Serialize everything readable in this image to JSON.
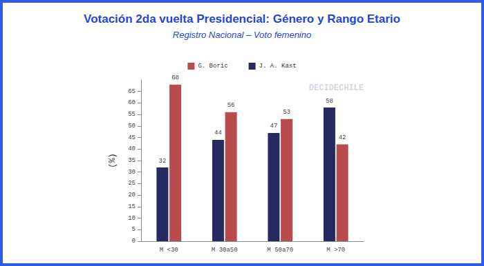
{
  "chart_data": {
    "type": "bar",
    "title": "Votación 2da vuelta Presidencial: Género y Rango Etario",
    "subtitle": "Registro Nacional – Voto femenino",
    "y_label": "(%)",
    "categories": [
      "M <30",
      "M 30a50",
      "M 50a70",
      "M >70"
    ],
    "series": [
      {
        "name": "J. A. Kast",
        "color": "#262a5e",
        "values": [
          32,
          44,
          47,
          58
        ]
      },
      {
        "name": "G. Boric",
        "color": "#b84c4c",
        "values": [
          68,
          56,
          53,
          42
        ]
      }
    ],
    "ylim": [
      0,
      70
    ],
    "yticks": [
      0,
      5,
      10,
      15,
      20,
      25,
      30,
      35,
      40,
      45,
      50,
      55,
      60,
      65
    ],
    "grid": false,
    "legend": "top",
    "data_labels": true,
    "annotations": [
      {
        "text": "DECIDECHILE"
      }
    ]
  }
}
